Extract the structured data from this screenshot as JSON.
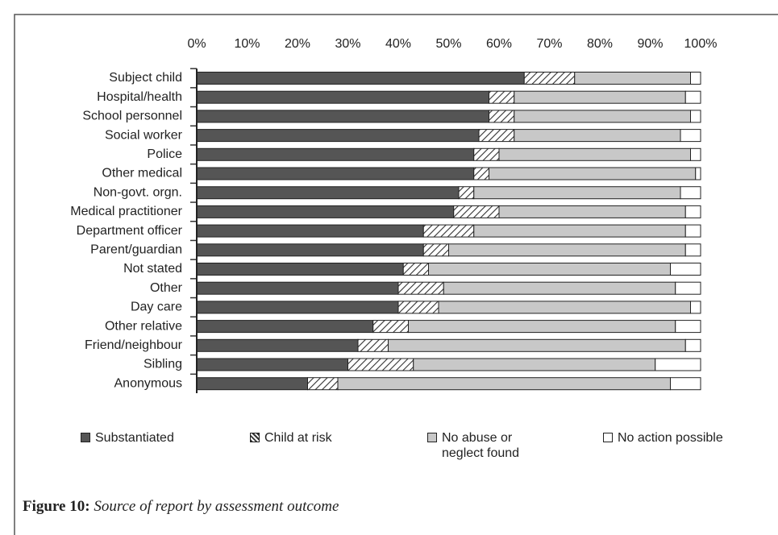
{
  "chart_data": {
    "type": "stacked-barh",
    "categories": [
      "Subject child",
      "Hospital/health",
      "School personnel",
      "Social worker",
      "Police",
      "Other medical",
      "Non-govt. orgn.",
      "Medical practitioner",
      "Department officer",
      "Parent/guardian",
      "Not stated",
      "Other",
      "Day care",
      "Other relative",
      "Friend/neighbour",
      "Sibling",
      "Anonymous"
    ],
    "series": [
      {
        "name": "Substantiated",
        "color": "#555555",
        "values": [
          65,
          58,
          58,
          56,
          55,
          55,
          52,
          51,
          45,
          45,
          41,
          40,
          40,
          35,
          32,
          30,
          22
        ]
      },
      {
        "name": "Child at risk",
        "color": "hatch",
        "values": [
          10,
          5,
          5,
          7,
          5,
          3,
          3,
          9,
          10,
          5,
          5,
          9,
          8,
          7,
          6,
          13,
          6
        ]
      },
      {
        "name": "No abuse or neglect found",
        "color": "#c8c8c8",
        "values": [
          23,
          34,
          35,
          33,
          38,
          41,
          41,
          37,
          42,
          47,
          48,
          46,
          50,
          53,
          59,
          48,
          66
        ]
      },
      {
        "name": "No action possible",
        "color": "#ffffff",
        "values": [
          2,
          3,
          2,
          4,
          2,
          1,
          4,
          3,
          3,
          3,
          6,
          5,
          2,
          5,
          3,
          9,
          6
        ]
      }
    ],
    "xlim": [
      0,
      100
    ],
    "xticks": [
      {
        "value": 0,
        "label": "0%"
      },
      {
        "value": 10,
        "label": "10%"
      },
      {
        "value": 20,
        "label": "20%"
      },
      {
        "value": 30,
        "label": "30%"
      },
      {
        "value": 40,
        "label": "40%"
      },
      {
        "value": 50,
        "label": "50%"
      },
      {
        "value": 60,
        "label": "60%"
      },
      {
        "value": 70,
        "label": "70%"
      },
      {
        "value": 80,
        "label": "80%"
      },
      {
        "value": 90,
        "label": "90%"
      },
      {
        "value": 100,
        "label": "100%"
      }
    ],
    "caption": {
      "label": "Figure 10:",
      "text": "Source of report by assessment outcome"
    }
  }
}
